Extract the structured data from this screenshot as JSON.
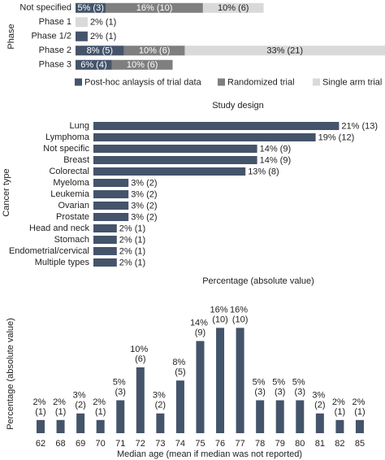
{
  "chart_data": [
    {
      "type": "bar",
      "orientation": "horizontal",
      "stacked": true,
      "x_label": "Study design",
      "y_label": "Phase",
      "legend": "bottom",
      "categories": [
        "Not specified",
        "Phase 1",
        "Phase 1/2",
        "Phase 2",
        "Phase 3"
      ],
      "series": [
        {
          "name": "Post-hoc anlaysis of trial data",
          "color": "#44546a",
          "label_color": "#ffffff",
          "values": [
            5,
            null,
            2,
            8,
            6
          ],
          "value_labels": [
            "5% (3)",
            null,
            "2% (1)",
            "8% (5)",
            "6% (4)"
          ]
        },
        {
          "name": "Randomized trial",
          "color": "#7f7f7f",
          "label_color": "#ffffff",
          "values": [
            16,
            null,
            null,
            10,
            10
          ],
          "value_labels": [
            "16% (10)",
            null,
            null,
            "10% (6)",
            "10% (6)"
          ]
        },
        {
          "name": "Single arm trial",
          "color": "#d9d9d9",
          "label_color": "#222222",
          "values": [
            10,
            2,
            null,
            33,
            null
          ],
          "value_labels": [
            "10% (6)",
            "2% (1)",
            null,
            "33% (21)",
            null
          ]
        }
      ]
    },
    {
      "type": "bar",
      "orientation": "horizontal",
      "x_label": "Percentage (absolute value)",
      "y_label": "Cancer type",
      "color": "#44546a",
      "categories": [
        "Lung",
        "Lymphoma",
        "Not specific",
        "Breast",
        "Colorectal",
        "Myeloma",
        "Leukemia",
        "Ovarian",
        "Prostate",
        "Head and neck",
        "Stomach",
        "Endometrial/cervical",
        "Multiple types"
      ],
      "values": [
        21,
        19,
        14,
        14,
        13,
        3,
        3,
        3,
        3,
        2,
        2,
        2,
        2
      ],
      "value_labels": [
        "21% (13)",
        "19% (12)",
        "14% (9)",
        "14% (9)",
        "13% (8)",
        "3% (2)",
        "3% (2)",
        "3% (2)",
        "3% (2)",
        "2% (1)",
        "2% (1)",
        "2% (1)",
        "2% (1)"
      ]
    },
    {
      "type": "bar",
      "orientation": "vertical",
      "x_label": "Median age (mean if median was not reported)",
      "y_label": "Percentage (absolute value)",
      "color": "#44546a",
      "categories": [
        "62",
        "68",
        "69",
        "70",
        "71",
        "72",
        "73",
        "74",
        "75",
        "76",
        "77",
        "78",
        "79",
        "80",
        "81",
        "82",
        "85"
      ],
      "values": [
        2,
        2,
        3,
        2,
        5,
        10,
        3,
        8,
        14,
        16,
        16,
        5,
        5,
        5,
        3,
        2,
        2
      ],
      "value_labels": [
        "2% (1)",
        "2% (1)",
        "3% (2)",
        "2% (1)",
        "5% (3)",
        "10% (6)",
        "3% (2)",
        "8% (5)",
        "14% (9)",
        "16% (10)",
        "16% (10)",
        "5% (3)",
        "5% (3)",
        "5% (3)",
        "3% (2)",
        "2% (1)",
        "2% (1)"
      ]
    }
  ]
}
